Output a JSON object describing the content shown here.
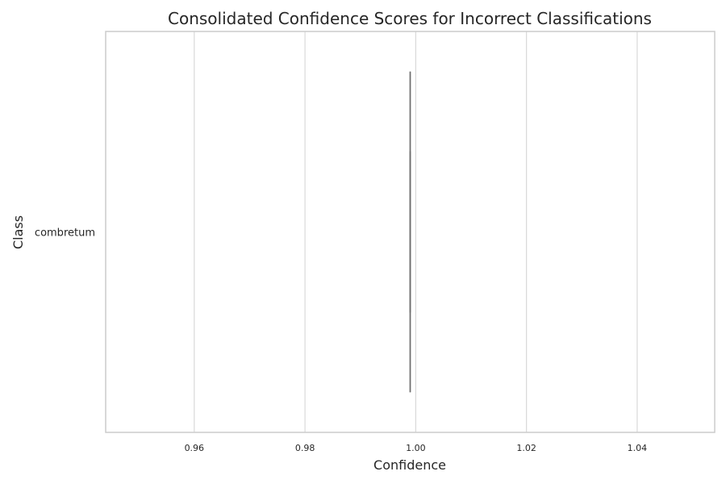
{
  "chart_data": {
    "type": "box",
    "title": "Consolidated Confidence Scores for Incorrect Classifications",
    "xlabel": "Confidence",
    "ylabel": "Class",
    "xlim": [
      0.944,
      1.054
    ],
    "xticks": [
      0.96,
      0.98,
      1.0,
      1.02,
      1.04
    ],
    "xtick_labels": [
      "0.96",
      "0.98",
      "1.00",
      "1.02",
      "1.04"
    ],
    "categories": [
      "combretum"
    ],
    "series": [
      {
        "category": "combretum",
        "min": 0.999,
        "q1": 0.999,
        "median": 0.999,
        "q3": 0.999,
        "max": 0.999
      }
    ],
    "grid": "vertical",
    "colors": {
      "grid": "#d9d9d9",
      "spine": "#cccccc",
      "box": "#6e6e6e"
    }
  }
}
